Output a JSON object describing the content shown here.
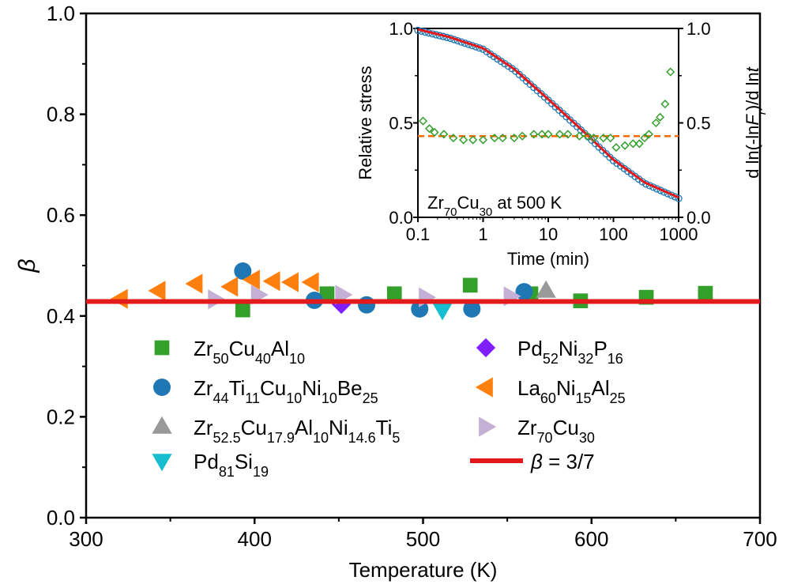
{
  "chart_data": [
    {
      "type": "scatter",
      "xlabel": "Temperature (K)",
      "ylabel": "β",
      "xlim": [
        300,
        700
      ],
      "ylim": [
        0,
        1.0
      ],
      "xticks": [
        "300",
        "400",
        "500",
        "600",
        "700"
      ],
      "yticks": [
        "0.0",
        "0.2",
        "0.4",
        "0.6",
        "0.8",
        "1.0"
      ],
      "legend_position": "bottom-center",
      "series": [
        {
          "name": "Zr50Cu40Al10",
          "marker": "square",
          "color": "#33a02c",
          "points": [
            [
              393,
              0.412
            ],
            [
              443,
              0.444
            ],
            [
              483,
              0.444
            ],
            [
              528,
              0.461
            ],
            [
              564,
              0.444
            ],
            [
              593.5,
              0.43
            ],
            [
              632.5,
              0.437
            ],
            [
              667.6,
              0.445
            ]
          ]
        },
        {
          "name": "Zr44Ti11Cu10Ni10Be25",
          "marker": "circle",
          "color": "#1f77b4",
          "points": [
            [
              393,
              0.489
            ],
            [
              435.5,
              0.431
            ],
            [
              466.5,
              0.422
            ],
            [
              498,
              0.414
            ],
            [
              529,
              0.414
            ],
            [
              560,
              0.448
            ]
          ]
        },
        {
          "name": "Zr52.5Cu17.9Al10Ni14.6Ti5",
          "marker": "triangle-up",
          "color": "#999999",
          "points": [
            [
              573,
              0.45
            ]
          ]
        },
        {
          "name": "Pd81Si19",
          "marker": "triangle-down",
          "color": "#17becf",
          "points": [
            [
              511.5,
              0.412
            ]
          ]
        },
        {
          "name": "Pd52Ni32P16",
          "marker": "diamond",
          "color": "#7f1fff",
          "points": [
            [
              451.5,
              0.423
            ]
          ]
        },
        {
          "name": "La60Ni15Al25",
          "marker": "triangle-left",
          "color": "#ff7f0e",
          "points": [
            [
              320.6,
              0.434
            ],
            [
              343,
              0.45
            ],
            [
              365,
              0.464
            ],
            [
              386,
              0.458
            ],
            [
              399,
              0.472
            ],
            [
              411,
              0.469
            ],
            [
              422,
              0.467
            ],
            [
              434,
              0.467
            ]
          ]
        },
        {
          "name": "Zr70Cu30",
          "marker": "triangle-right",
          "color": "#c5b0d5",
          "points": [
            [
              376.5,
              0.433
            ],
            [
              402,
              0.442
            ],
            [
              452,
              0.442
            ],
            [
              501.6,
              0.437
            ],
            [
              552,
              0.439
            ]
          ]
        }
      ],
      "reference_line": {
        "label_symbol": "β",
        "label_value": " = 3/7",
        "value": 0.4286,
        "color": "#e31a1c"
      }
    },
    {
      "type": "line",
      "xlabel": "Time (min)",
      "ylabel": "Relative stress",
      "ylabel_right_parts": [
        "d ln(-ln",
        "F",
        "r",
        ")/d ln",
        "t"
      ],
      "x_scale": "log",
      "xlim": [
        0.1,
        1000
      ],
      "ylim": [
        0,
        1.0
      ],
      "ylim_right": [
        0,
        1.0
      ],
      "xticks": [
        "0.1",
        "1",
        "10",
        "100",
        "1000"
      ],
      "yticks": [
        "0.0",
        "0.5",
        "1.0"
      ],
      "yticks_right": [
        "0.0",
        "0.5",
        "1.0"
      ],
      "annotation": {
        "formula": "Zr70Cu30",
        "text": " at 500 K"
      },
      "relative_stress": {
        "color": "#1f77b4",
        "x": [
          0.1,
          0.3,
          1,
          3,
          10,
          30,
          100,
          300,
          1000
        ],
        "y": [
          0.99,
          0.95,
          0.89,
          0.78,
          0.62,
          0.47,
          0.3,
          0.18,
          0.1
        ]
      },
      "fit_color": "#e31a1c",
      "derivative": {
        "color": "#33a02c",
        "axis": "right",
        "x": [
          0.12,
          0.15,
          0.18,
          0.25,
          0.35,
          0.5,
          0.7,
          1,
          1.5,
          2,
          3,
          4,
          6,
          8,
          10,
          15,
          20,
          30,
          40,
          50,
          70,
          90,
          110,
          150,
          200,
          250,
          300,
          350,
          450,
          520,
          620,
          750
        ],
        "y": [
          0.51,
          0.47,
          0.45,
          0.44,
          0.42,
          0.41,
          0.41,
          0.41,
          0.42,
          0.42,
          0.42,
          0.43,
          0.44,
          0.44,
          0.44,
          0.44,
          0.44,
          0.43,
          0.43,
          0.42,
          0.42,
          0.42,
          0.37,
          0.38,
          0.39,
          0.39,
          0.42,
          0.44,
          0.5,
          0.53,
          0.6,
          0.77
        ]
      },
      "dashed_line": {
        "value": 0.43,
        "color": "#ff6a00"
      }
    }
  ]
}
